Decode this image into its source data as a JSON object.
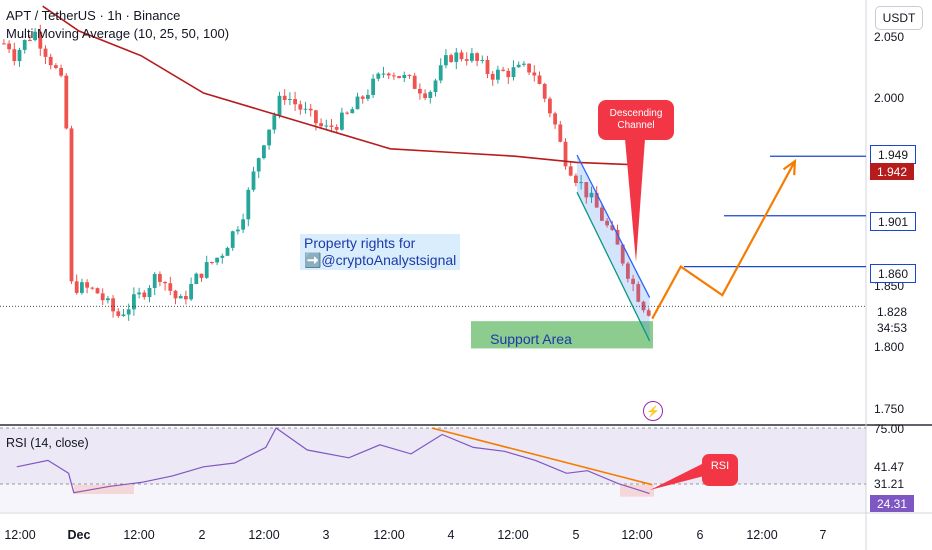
{
  "header": {
    "title": "APT / TetherUS · 1h · Binance",
    "indicator": "Multi Moving Average (10, 25, 50, 100)"
  },
  "currency_button": "USDT",
  "price_axis": {
    "labels": [
      "2.050",
      "2.000",
      "1.850",
      "1.800",
      "1.750"
    ]
  },
  "badges": {
    "level_1949": {
      "text": "1.949",
      "bg": "#ffffff",
      "fg": "#131722",
      "border": "#1848cc"
    },
    "ma_value": {
      "text": "1.942",
      "bg": "#b71c1c",
      "fg": "#ffffff"
    },
    "level_1901": {
      "text": "1.901",
      "bg": "#ffffff",
      "fg": "#131722",
      "border": "#1848cc"
    },
    "level_1860": {
      "text": "1.860",
      "bg": "#ffffff",
      "fg": "#131722",
      "border": "#1848cc"
    },
    "last_price": {
      "text": "1.828",
      "bg": "#ffffff",
      "fg": "#131722"
    },
    "countdown": {
      "text": "34:53",
      "bg": "#ffffff",
      "fg": "#131722"
    }
  },
  "rsi": {
    "title": "RSI (14, close)",
    "axis_labels": [
      "75.00",
      "41.47",
      "31.21"
    ],
    "current": "24.31",
    "current_bg": "#7e57c2"
  },
  "time_axis": {
    "labels": [
      "12:00",
      "Dec",
      "12:00",
      "2",
      "12:00",
      "3",
      "12:00",
      "4",
      "12:00",
      "5",
      "12:00",
      "6",
      "12:00",
      "7"
    ]
  },
  "annotations": {
    "watermark_line1": "Property rights for",
    "watermark_line2": "➡️@cryptoAnalystsignal",
    "support": "Support Area",
    "descending_line1": "Descending",
    "descending_line2": "Channel",
    "rsi_callout": "RSI"
  },
  "colors": {
    "up": "#26a69a",
    "down": "#ef5350",
    "ma": "#b71c1c",
    "level_line": "#1848cc",
    "projection": "#f57c00",
    "support_fill": "#66bb6a",
    "callout": "#f23645",
    "rsi_line": "#7e57c2"
  },
  "chart_data": {
    "type": "candlestick",
    "symbol": "APT / TetherUS",
    "interval": "1h",
    "y_range": [
      1.735,
      2.07
    ],
    "rsi_range": [
      0,
      100
    ],
    "levels": [
      1.949,
      1.901,
      1.86
    ],
    "last_price": 1.828,
    "support_zone": [
      1.794,
      1.816
    ],
    "price_path": [
      [
        "Nov 30 11:00",
        2.04
      ],
      [
        "Nov 30 12:00",
        2.03
      ],
      [
        "Nov 30 16:00",
        2.05
      ],
      [
        "Nov 30 20:00",
        2.02
      ],
      [
        "Nov 30 22:00",
        2.0
      ],
      [
        "Nov 30 23:00",
        1.845
      ],
      [
        "Dec 1 04:00",
        1.84
      ],
      [
        "Dec 1 08:00",
        1.82
      ],
      [
        "Dec 1 12:00",
        1.835
      ],
      [
        "Dec 1 16:00",
        1.855
      ],
      [
        "Dec 1 20:00",
        1.83
      ],
      [
        "Dec 2 00:00",
        1.855
      ],
      [
        "Dec 2 04:00",
        1.87
      ],
      [
        "Dec 2 08:00",
        1.9
      ],
      [
        "Dec 2 12:00",
        1.96
      ],
      [
        "Dec 2 16:00",
        2.0
      ],
      [
        "Dec 3 00:00",
        1.97
      ],
      [
        "Dec 3 04:00",
        1.98
      ],
      [
        "Dec 3 12:00",
        2.02
      ],
      [
        "Dec 3 20:00",
        2.0
      ],
      [
        "Dec 4 00:00",
        2.03
      ],
      [
        "Dec 4 04:00",
        2.03
      ],
      [
        "Dec 4 08:00",
        2.015
      ],
      [
        "Dec 4 16:00",
        2.02
      ],
      [
        "Dec 4 20:00",
        1.98
      ],
      [
        "Dec 4 22:00",
        1.95
      ],
      [
        "Dec 5 00:00",
        1.935
      ],
      [
        "Dec 5 04:00",
        1.91
      ],
      [
        "Dec 5 08:00",
        1.88
      ],
      [
        "Dec 5 12:00",
        1.84
      ],
      [
        "Dec 5 14:00",
        1.825
      ]
    ],
    "moving_average_path": [
      [
        "Nov 30 17:00",
        2.07
      ],
      [
        "Dec 1 00:00",
        2.05
      ],
      [
        "Dec 1 12:00",
        2.03
      ],
      [
        "Dec 2 00:00",
        2.0
      ],
      [
        "Dec 2 12:00",
        1.985
      ],
      [
        "Dec 3 00:00",
        1.97
      ],
      [
        "Dec 3 12:00",
        1.955
      ],
      [
        "Dec 4 00:00",
        1.952
      ],
      [
        "Dec 4 12:00",
        1.949
      ],
      [
        "Dec 5 00:00",
        1.944
      ],
      [
        "Dec 5 12:00",
        1.942
      ]
    ],
    "projection_path": [
      [
        "Dec 5 14:30",
        1.818
      ],
      [
        "Dec 5 20:00",
        1.86
      ],
      [
        "Dec 6 04:00",
        1.837
      ],
      [
        "Dec 6 18:00",
        1.945
      ]
    ],
    "rsi_path": [
      [
        "Nov 30 12:00",
        45
      ],
      [
        "Nov 30 18:00",
        50
      ],
      [
        "Nov 30 22:00",
        40
      ],
      [
        "Nov 30 23:00",
        25
      ],
      [
        "Dec 1 06:00",
        30
      ],
      [
        "Dec 1 12:00",
        33
      ],
      [
        "Dec 1 18:00",
        38
      ],
      [
        "Dec 2 00:00",
        45
      ],
      [
        "Dec 2 06:00",
        48
      ],
      [
        "Dec 2 12:00",
        60
      ],
      [
        "Dec 2 14:00",
        75
      ],
      [
        "Dec 2 20:00",
        58
      ],
      [
        "Dec 3 04:00",
        52
      ],
      [
        "Dec 3 10:00",
        62
      ],
      [
        "Dec 3 16:00",
        55
      ],
      [
        "Dec 3 22:00",
        70
      ],
      [
        "Dec 4 04:00",
        60
      ],
      [
        "Dec 4 10:00",
        57
      ],
      [
        "Dec 4 16:00",
        50
      ],
      [
        "Dec 4 22:00",
        40
      ],
      [
        "Dec 5 02:00",
        42
      ],
      [
        "Dec 5 08:00",
        32
      ],
      [
        "Dec 5 12:00",
        27
      ],
      [
        "Dec 5 14:00",
        24.31
      ]
    ],
    "rsi_trendline": [
      [
        "Dec 3 20:00",
        75
      ],
      [
        "Dec 5 14:30",
        31.21
      ]
    ]
  }
}
